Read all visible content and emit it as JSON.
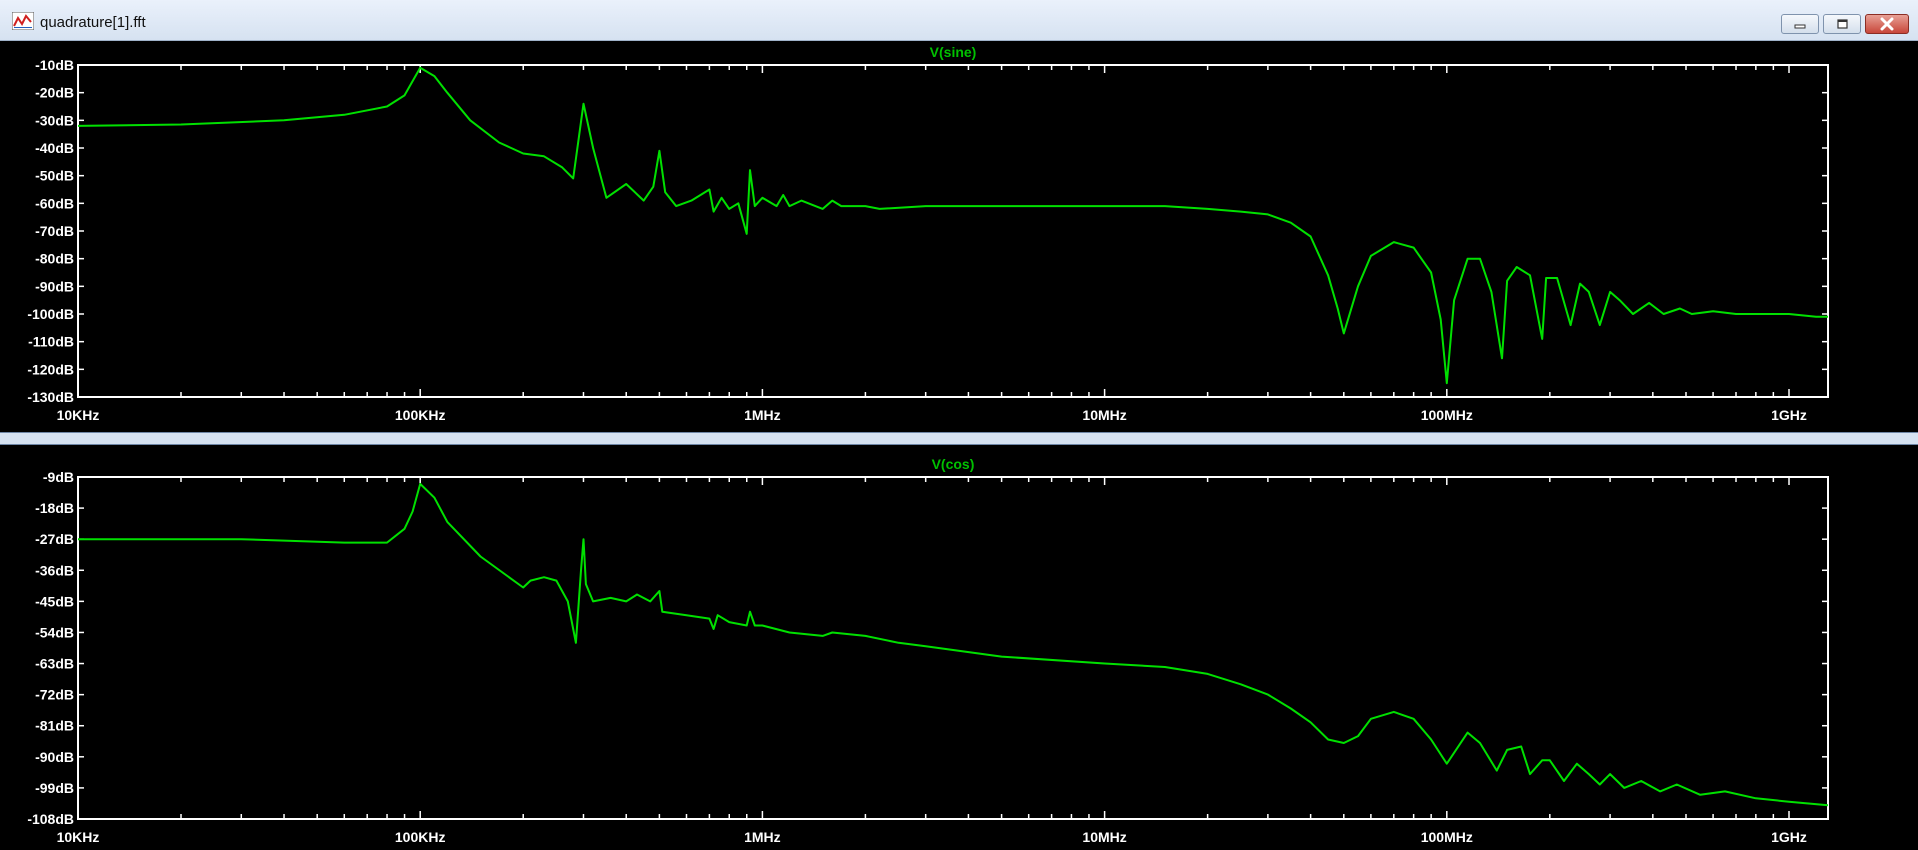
{
  "window": {
    "title": "quadrature[1].fft",
    "icon": "waveform-icon",
    "buttons": [
      "minimize-icon",
      "restore-icon",
      "close-icon"
    ]
  },
  "colors": {
    "trace": "#00e000",
    "title": "#00c000",
    "axis": "#ffffff",
    "background": "#000000"
  },
  "chart_data": [
    {
      "type": "line",
      "title": "V(sine)",
      "x_scale": "log",
      "xlim": [
        10000,
        1300000000
      ],
      "x_ticks": [
        "10KHz",
        "100KHz",
        "1MHz",
        "10MHz",
        "100MHz",
        "1GHz"
      ],
      "y_ticks": [
        "-10dB",
        "-20dB",
        "-30dB",
        "-40dB",
        "-50dB",
        "-60dB",
        "-70dB",
        "-80dB",
        "-90dB",
        "-100dB",
        "-110dB",
        "-120dB",
        "-130dB"
      ],
      "ylim": [
        -130,
        -10
      ],
      "series": [
        {
          "name": "V(sine)",
          "x": [
            10000,
            20000,
            40000,
            60000,
            80000,
            90000,
            100000,
            110000,
            120000,
            140000,
            170000,
            200000,
            230000,
            260000,
            280000,
            300000,
            320000,
            350000,
            400000,
            450000,
            480000,
            500000,
            520000,
            560000,
            620000,
            700000,
            720000,
            760000,
            800000,
            850000,
            900000,
            920000,
            950000,
            1000000,
            1100000,
            1150000,
            1200000,
            1300000,
            1500000,
            1600000,
            1700000,
            2000000,
            2200000,
            3000000,
            5000000,
            10000000,
            15000000,
            20000000,
            25000000,
            30000000,
            35000000,
            40000000,
            45000000,
            48000000,
            50000000,
            55000000,
            60000000,
            70000000,
            80000000,
            90000000,
            96000000,
            100000000,
            105000000,
            115000000,
            125000000,
            135000000,
            145000000,
            150000000,
            160000000,
            175000000,
            190000000,
            195000000,
            210000000,
            230000000,
            245000000,
            260000000,
            280000000,
            300000000,
            320000000,
            350000000,
            390000000,
            430000000,
            480000000,
            520000000,
            600000000,
            700000000,
            800000000,
            1000000000,
            1200000000,
            1300000000
          ],
          "y": [
            -32,
            -31.5,
            -30,
            -28,
            -25,
            -21,
            -11,
            -14,
            -20,
            -30,
            -38,
            -42,
            -43,
            -47,
            -51,
            -24,
            -40,
            -58,
            -53,
            -59,
            -54,
            -41,
            -56,
            -61,
            -59,
            -55,
            -63,
            -58,
            -62,
            -60,
            -71,
            -48,
            -61,
            -58,
            -61,
            -57,
            -61,
            -59,
            -62,
            -59,
            -61,
            -61,
            -62,
            -61,
            -61,
            -61,
            -61,
            -62,
            -63,
            -64,
            -67,
            -72,
            -86,
            -98,
            -107,
            -90,
            -79,
            -74,
            -76,
            -85,
            -102,
            -125,
            -95,
            -80,
            -80,
            -92,
            -116,
            -88,
            -83,
            -86,
            -109,
            -87,
            -87,
            -104,
            -89,
            -92,
            -104,
            -92,
            -95,
            -100,
            -96,
            -100,
            -98,
            -100,
            -99,
            -100,
            -100,
            -100,
            -101,
            -101
          ]
        }
      ]
    },
    {
      "type": "line",
      "title": "V(cos)",
      "x_scale": "log",
      "xlim": [
        10000,
        1300000000
      ],
      "x_ticks": [
        "10KHz",
        "100KHz",
        "1MHz",
        "10MHz",
        "100MHz",
        "1GHz"
      ],
      "y_ticks": [
        "-9dB",
        "-18dB",
        "-27dB",
        "-36dB",
        "-45dB",
        "-54dB",
        "-63dB",
        "-72dB",
        "-81dB",
        "-90dB",
        "-99dB",
        "-108dB"
      ],
      "ylim": [
        -108,
        -9
      ],
      "series": [
        {
          "name": "V(cos)",
          "x": [
            10000,
            30000,
            60000,
            80000,
            90000,
            95000,
            100000,
            110000,
            120000,
            150000,
            200000,
            210000,
            230000,
            250000,
            270000,
            285000,
            295000,
            300000,
            305000,
            320000,
            360000,
            400000,
            430000,
            470000,
            500000,
            510000,
            600000,
            700000,
            720000,
            740000,
            800000,
            900000,
            920000,
            950000,
            1000000,
            1200000,
            1500000,
            1600000,
            2000000,
            2500000,
            3000000,
            5000000,
            10000000,
            15000000,
            20000000,
            25000000,
            30000000,
            35000000,
            40000000,
            45000000,
            50000000,
            55000000,
            60000000,
            70000000,
            80000000,
            90000000,
            100000000,
            115000000,
            125000000,
            140000000,
            150000000,
            165000000,
            175000000,
            190000000,
            200000000,
            220000000,
            240000000,
            260000000,
            280000000,
            300000000,
            330000000,
            370000000,
            420000000,
            470000000,
            550000000,
            650000000,
            800000000,
            1000000000,
            1300000000
          ],
          "y": [
            -27,
            -27,
            -28,
            -28,
            -24,
            -19,
            -11,
            -15,
            -22,
            -32,
            -41,
            -39,
            -38,
            -39,
            -45,
            -57,
            -36,
            -27,
            -40,
            -45,
            -44,
            -45,
            -43,
            -45,
            -42,
            -48,
            -49,
            -50,
            -53,
            -49,
            -51,
            -52,
            -48,
            -52,
            -52,
            -54,
            -55,
            -54,
            -55,
            -57,
            -58,
            -61,
            -63,
            -64,
            -66,
            -69,
            -72,
            -76,
            -80,
            -85,
            -86,
            -84,
            -79,
            -77,
            -79,
            -85,
            -92,
            -83,
            -86,
            -94,
            -88,
            -87,
            -95,
            -91,
            -91,
            -97,
            -92,
            -95,
            -98,
            -95,
            -99,
            -97,
            -100,
            -98,
            -101,
            -100,
            -102,
            -103,
            -104
          ]
        }
      ]
    }
  ]
}
